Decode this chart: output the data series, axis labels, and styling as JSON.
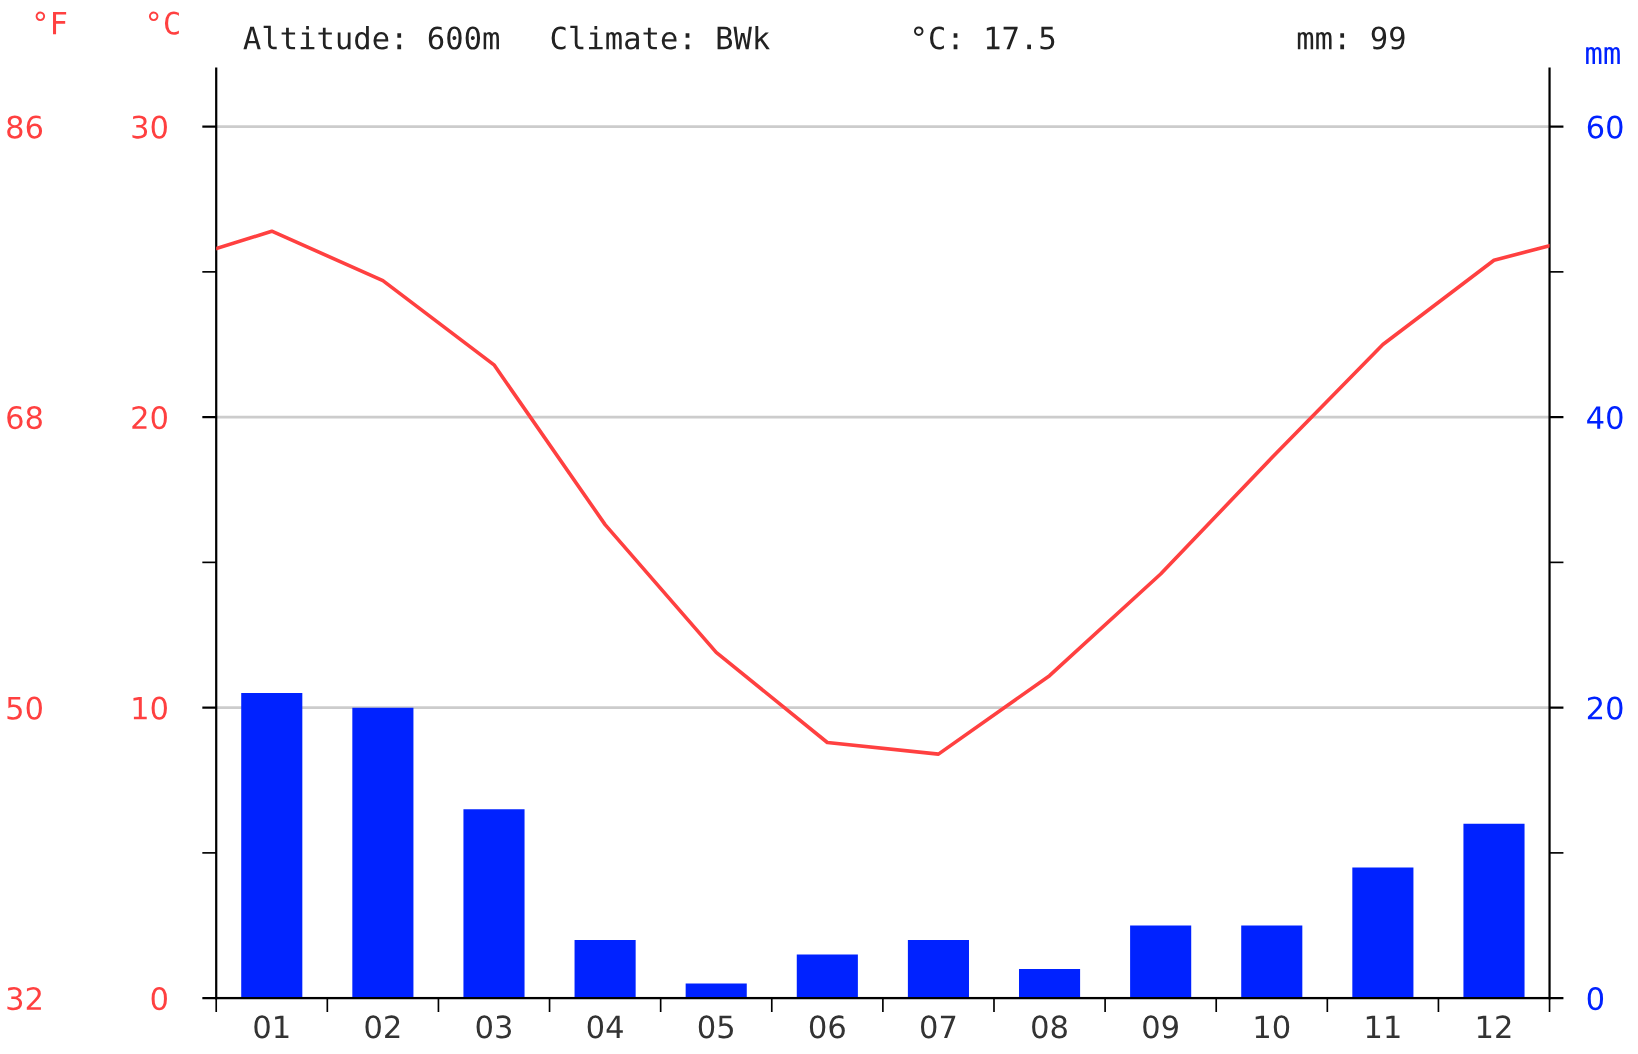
{
  "chart_data": {
    "type": "bar",
    "annotations": [
      "Altitude: 600m",
      "Climate: BWk",
      "°C: 17.5",
      "mm: 99"
    ],
    "ylabel": "°C",
    "y2label": "mm",
    "y3label": "°F",
    "x": [
      1,
      2,
      3,
      4,
      5,
      6,
      7,
      8,
      9,
      10,
      11,
      12
    ],
    "series": [
      {
        "axis": "y2",
        "color": "#0022ff",
        "values": [
          21,
          20,
          13,
          4,
          1,
          3,
          4,
          2,
          5,
          5,
          9,
          12
        ]
      },
      {
        "type": "line",
        "axis": "y",
        "color": "#ff4040",
        "x": [
          0.5,
          1,
          2,
          3,
          4,
          5,
          6,
          7,
          8,
          9,
          10,
          11,
          12,
          12.5
        ],
        "values": [
          25.8,
          26.4,
          24.7,
          21.8,
          16.3,
          11.9,
          8.8,
          8.4,
          11.1,
          14.6,
          18.6,
          22.5,
          25.4,
          25.9
        ]
      }
    ],
    "xlim": [
      0.5,
      12.5
    ],
    "xticks": [
      {
        "value": 0.5,
        "label": null
      },
      {
        "value": 1,
        "label": "01"
      },
      {
        "value": 1.5,
        "label": null
      },
      {
        "value": 2,
        "label": "02"
      },
      {
        "value": 2.5,
        "label": null
      },
      {
        "value": 3,
        "label": "03"
      },
      {
        "value": 3.5,
        "label": null
      },
      {
        "value": 4,
        "label": "04"
      },
      {
        "value": 4.5,
        "label": null
      },
      {
        "value": 5,
        "label": "05"
      },
      {
        "value": 5.5,
        "label": null
      },
      {
        "value": 6,
        "label": "06"
      },
      {
        "value": 6.5,
        "label": null
      },
      {
        "value": 7,
        "label": "07"
      },
      {
        "value": 7.5,
        "label": null
      },
      {
        "value": 8,
        "label": "08"
      },
      {
        "value": 8.5,
        "label": null
      },
      {
        "value": 9,
        "label": "09"
      },
      {
        "value": 9.5,
        "label": null
      },
      {
        "value": 10,
        "label": "10"
      },
      {
        "value": 10.5,
        "label": null
      },
      {
        "value": 11,
        "label": "11"
      },
      {
        "value": 11.5,
        "label": null
      },
      {
        "value": 12,
        "label": "12"
      },
      {
        "value": 12.5,
        "label": null
      }
    ],
    "ylim": [
      0,
      32
    ],
    "yticks": [
      0,
      {
        "value": 5,
        "label": null
      },
      10,
      {
        "value": 15,
        "label": null
      },
      20,
      {
        "value": 25,
        "label": null
      },
      30
    ],
    "y2lim": [
      0,
      64
    ],
    "y2ticks": [
      0,
      {
        "value": 10,
        "label": null
      },
      20,
      {
        "value": 30,
        "label": null
      },
      40,
      {
        "value": 50,
        "label": null
      },
      60
    ],
    "y3lim": [
      32,
      89.6
    ],
    "y3ticks": [
      32,
      50,
      68,
      86
    ],
    "grid": "y",
    "legend": false
  }
}
